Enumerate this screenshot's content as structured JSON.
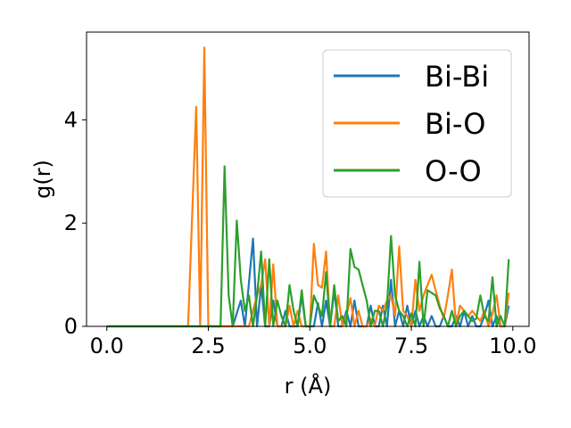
{
  "chart_data": {
    "type": "line",
    "title": "",
    "xlabel": "r (Å)",
    "ylabel": "g(r)",
    "xlim": [
      -0.5,
      10.4
    ],
    "ylim": [
      0,
      5.7
    ],
    "xticks": [
      0.0,
      2.5,
      5.0,
      7.5,
      10.0
    ],
    "xtick_labels": [
      "0.0",
      "2.5",
      "5.0",
      "7.5",
      "10.0"
    ],
    "yticks": [
      0,
      2,
      4
    ],
    "ytick_labels": [
      "0",
      "2",
      "4"
    ],
    "grid": false,
    "legend_position": "top-right",
    "series": [
      {
        "name": "Bi-Bi",
        "color": "#1f77b4",
        "x": [
          0,
          3.1,
          3.3,
          3.4,
          3.6,
          3.7,
          3.8,
          3.9,
          4.0,
          4.1,
          4.2,
          4.3,
          4.4,
          4.5,
          4.6,
          4.7,
          4.8,
          4.9,
          5.0,
          5.1,
          5.2,
          5.3,
          5.4,
          5.5,
          5.6,
          5.7,
          5.8,
          5.9,
          6.0,
          6.1,
          6.2,
          6.3,
          6.4,
          6.5,
          6.6,
          6.7,
          6.8,
          6.9,
          7.0,
          7.1,
          7.2,
          7.3,
          7.4,
          7.5,
          7.6,
          7.7,
          7.8,
          7.9,
          8.0,
          8.1,
          8.2,
          8.3,
          8.4,
          8.5,
          8.6,
          8.7,
          8.8,
          8.9,
          9.0,
          9.1,
          9.2,
          9.3,
          9.4,
          9.5,
          9.6,
          9.7,
          9.8,
          9.9
        ],
        "y": [
          0,
          0,
          0.5,
          0,
          1.7,
          0,
          0.8,
          0,
          0,
          0.5,
          0,
          0,
          0.3,
          0,
          0,
          0,
          0.6,
          0,
          0,
          0,
          0.45,
          0,
          0.5,
          0,
          0.7,
          0,
          0,
          0.3,
          0,
          0.5,
          0,
          0,
          0,
          0.4,
          0,
          0,
          0.4,
          0,
          0.9,
          0,
          0.3,
          0,
          0.4,
          0,
          0.3,
          0,
          0.2,
          0,
          0.2,
          0,
          0,
          0.2,
          0,
          0,
          0.2,
          0,
          0.3,
          0,
          0.2,
          0,
          0,
          0.2,
          0.5,
          0,
          0.2,
          0,
          0,
          0.4
        ]
      },
      {
        "name": "Bi-O",
        "color": "#ff7f0e",
        "x": [
          0,
          2.0,
          2.2,
          2.3,
          2.4,
          2.5,
          3.0,
          3.5,
          3.7,
          3.8,
          3.9,
          4.0,
          4.1,
          4.2,
          4.3,
          4.4,
          4.5,
          4.6,
          4.7,
          4.8,
          4.9,
          5.0,
          5.1,
          5.2,
          5.3,
          5.4,
          5.5,
          5.6,
          5.7,
          5.8,
          5.9,
          6.0,
          6.1,
          6.2,
          6.3,
          6.4,
          6.5,
          6.6,
          6.7,
          6.8,
          6.9,
          7.0,
          7.1,
          7.2,
          7.3,
          7.4,
          7.5,
          7.6,
          7.7,
          7.8,
          7.9,
          8.0,
          8.1,
          8.2,
          8.3,
          8.4,
          8.5,
          8.6,
          8.7,
          8.8,
          8.9,
          9.0,
          9.1,
          9.2,
          9.3,
          9.4,
          9.5,
          9.6,
          9.7,
          9.8,
          9.9
        ],
        "y": [
          0,
          0,
          4.25,
          0,
          5.4,
          0,
          0,
          0,
          0.6,
          0.8,
          1.3,
          0,
          1.2,
          0,
          0,
          0,
          0.4,
          0,
          0.3,
          0,
          0,
          0,
          1.6,
          0.8,
          0.75,
          1.45,
          0,
          0,
          0.6,
          0,
          0.2,
          0.55,
          0,
          0.3,
          0,
          0,
          0.15,
          0,
          0.4,
          0.3,
          0.5,
          0.6,
          0.2,
          1.55,
          0.3,
          0.2,
          0,
          0.9,
          0.3,
          0.6,
          0.8,
          1.0,
          0.7,
          0.4,
          0.15,
          0.6,
          1.1,
          0,
          0.4,
          0.3,
          0.2,
          0.3,
          0.2,
          0.1,
          0.3,
          0,
          0.25,
          0.6,
          0,
          0,
          0.65
        ]
      },
      {
        "name": "O-O",
        "color": "#2ca02c",
        "x": [
          0,
          2.8,
          2.9,
          3.0,
          3.1,
          3.2,
          3.3,
          3.4,
          3.5,
          3.6,
          3.7,
          3.8,
          3.9,
          4.0,
          4.1,
          4.2,
          4.3,
          4.4,
          4.5,
          4.6,
          4.7,
          4.8,
          4.9,
          5.0,
          5.1,
          5.2,
          5.3,
          5.4,
          5.5,
          5.6,
          5.7,
          5.8,
          5.9,
          6.0,
          6.1,
          6.2,
          6.3,
          6.4,
          6.5,
          6.6,
          6.7,
          6.8,
          6.9,
          7.0,
          7.1,
          7.2,
          7.3,
          7.4,
          7.5,
          7.6,
          7.7,
          7.8,
          7.9,
          8.0,
          8.1,
          8.2,
          8.3,
          8.4,
          8.5,
          8.6,
          8.7,
          8.8,
          8.9,
          9.0,
          9.1,
          9.2,
          9.3,
          9.4,
          9.5,
          9.6,
          9.7,
          9.8,
          9.9
        ],
        "y": [
          0,
          0,
          3.1,
          0.6,
          0,
          2.05,
          0.9,
          0.3,
          0.6,
          0,
          0.6,
          1.45,
          0,
          1.3,
          0,
          0.5,
          0.2,
          0,
          0.8,
          0.3,
          0,
          0.7,
          0,
          0,
          0.6,
          0.4,
          0.2,
          1.05,
          0,
          0.8,
          0.1,
          0.2,
          0,
          1.5,
          1.15,
          1.1,
          0.8,
          0.5,
          0,
          0.3,
          0.3,
          0,
          0.4,
          1.75,
          0.6,
          0.3,
          0.2,
          0,
          0.25,
          0,
          1.25,
          0,
          0.7,
          0.65,
          0.6,
          0.35,
          0.2,
          0,
          0.3,
          0,
          0.2,
          0.3,
          0.2,
          0.1,
          0.15,
          0.6,
          0.2,
          0.1,
          0.95,
          0,
          0.2,
          0,
          1.3
        ]
      }
    ]
  }
}
